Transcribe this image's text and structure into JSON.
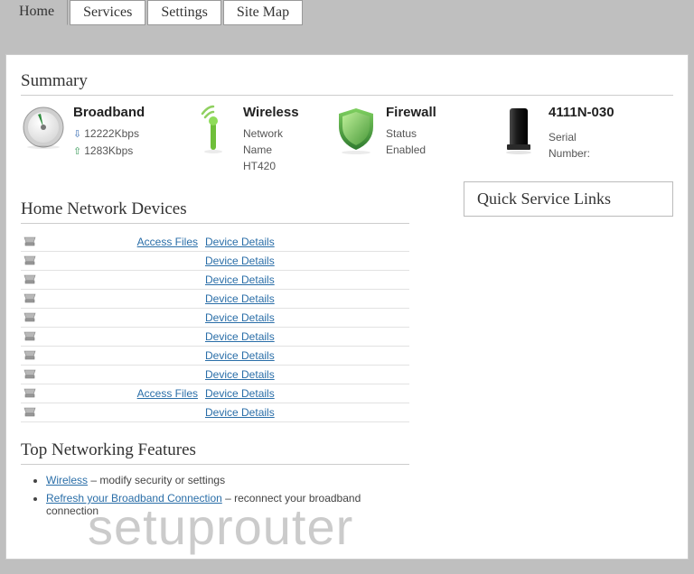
{
  "tabs": {
    "items": [
      {
        "label": "Home",
        "active": true
      },
      {
        "label": "Services",
        "active": false
      },
      {
        "label": "Settings",
        "active": false
      },
      {
        "label": "Site Map",
        "active": false
      }
    ]
  },
  "summary": {
    "heading": "Summary",
    "broadband": {
      "title": "Broadband",
      "down": "12222Kbps",
      "up": "1283Kbps",
      "arrow_down_color": "#3b6fb5",
      "arrow_up_color": "#3b9b5b",
      "gauge_colors": {
        "ring": "#d8d8d8",
        "face": "#f4f4f4",
        "needle": "#2e8b3e"
      }
    },
    "wireless": {
      "title": "Wireless",
      "label1": "Network",
      "label2": "Name",
      "value": "HT420",
      "antenna_color": "#6fbf3a"
    },
    "firewall": {
      "title": "Firewall",
      "label": "Status",
      "value": "Enabled",
      "shield_outer": "#2f7a2f",
      "shield_inner": "#6fcf4a"
    },
    "device": {
      "title": "4111N-030",
      "label": "Serial",
      "label2": "Number:",
      "body_color": "#2b2b2b"
    }
  },
  "devices": {
    "heading": "Home Network Devices",
    "access_files_label": "Access Files",
    "device_details_label": "Device Details",
    "rows": [
      {
        "access_files": true
      },
      {
        "access_files": false
      },
      {
        "access_files": false
      },
      {
        "access_files": false
      },
      {
        "access_files": false
      },
      {
        "access_files": false
      },
      {
        "access_files": false
      },
      {
        "access_files": false
      },
      {
        "access_files": true
      },
      {
        "access_files": false
      }
    ]
  },
  "quick_service": {
    "heading": "Quick Service Links"
  },
  "features": {
    "heading": "Top Networking Features",
    "items": [
      {
        "link": "Wireless",
        "text": " – modify security or settings"
      },
      {
        "link": "Refresh your Broadband Connection",
        "text": " – reconnect your broadband connection"
      }
    ]
  },
  "watermark": "setuprouter"
}
